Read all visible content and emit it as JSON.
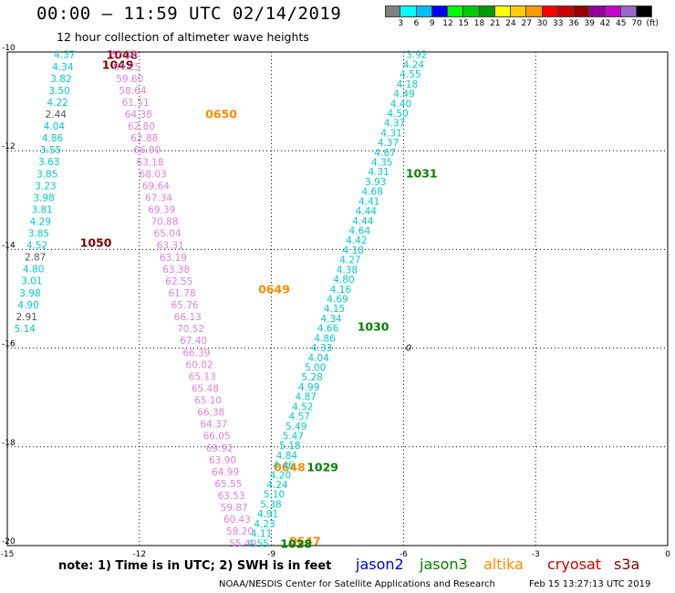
{
  "header": {
    "title": "00:00 – 11:59 UTC 02/14/2019",
    "subtitle": "12 hour collection of altimeter wave heights"
  },
  "legend": {
    "unit": "(ft)",
    "colors": [
      "#808080",
      "#00ffff",
      "#00bfff",
      "#0000ff",
      "#00ff00",
      "#00cc00",
      "#009900",
      "#ffff00",
      "#ffcc00",
      "#ff9900",
      "#ff0000",
      "#cc0000",
      "#990000",
      "#990099",
      "#cc00cc",
      "#9966cc",
      "#000000"
    ],
    "labels": [
      "3",
      "6",
      "9",
      "12",
      "15",
      "18",
      "21",
      "24",
      "27",
      "30",
      "33",
      "36",
      "39",
      "42",
      "45",
      "70"
    ]
  },
  "map": {
    "lon_range": [
      -15,
      0
    ],
    "lat_range": [
      -20,
      -10
    ],
    "x_ticks": [
      "-15",
      "-12",
      "-9",
      "-6",
      "-3",
      "0"
    ],
    "y_ticks": [
      "-10",
      "-12",
      "-14",
      "-16",
      "-18",
      "-20"
    ],
    "stray_label": "0"
  },
  "colors": {
    "jason2": "#0000cc",
    "jason3": "#008000",
    "altika": "#ff8c00",
    "cryosat": "#cc0000",
    "s3a": "#800000",
    "wave_low": "#00cccc",
    "wave_gray": "#555555",
    "wave_pink": "#e080e0"
  },
  "tracks": [
    {
      "satellite": "s3a",
      "color": "#00cccc",
      "values": [
        "4.37",
        "4.34",
        "3.82",
        "3.50",
        "4.22",
        "2.44",
        "4.04",
        "4.86",
        "3.55",
        "3.63",
        "3.85",
        "3.23",
        "3.98",
        "3.81",
        "4.29",
        "3.85",
        "4.52",
        "2.87",
        "4.80",
        "3.01",
        "3.98",
        "4.90",
        "2.91",
        "5.14"
      ],
      "gray_indices": [
        5,
        17,
        22
      ],
      "start": [
        -13.7,
        -10.05
      ],
      "end": [
        -14.6,
        -15.6
      ],
      "orbit_labels": [
        {
          "text": "1048",
          "lon": -12.75,
          "lat": -10.05,
          "color": "#800000"
        },
        {
          "text": "1049",
          "lon": -12.85,
          "lat": -10.25,
          "color": "#800000"
        },
        {
          "text": "1050",
          "lon": -13.35,
          "lat": -13.85,
          "color": "#800000"
        }
      ]
    },
    {
      "satellite": "altika",
      "color": "#e080e0",
      "values": [
        "67.18",
        "64.25",
        "59.60",
        "58.64",
        "61.51",
        "64.38",
        "62.80",
        "62.88",
        "66.90",
        "63.18",
        "68.03",
        "69.64",
        "67.34",
        "69.39",
        "70.88",
        "65.04",
        "63.31",
        "63.19",
        "63.38",
        "62.55",
        "61.78",
        "65.76",
        "66.13",
        "70.52",
        "67.40",
        "66.39",
        "60.02",
        "65.13",
        "65.48",
        "65.10",
        "66.38",
        "64.37",
        "66.05",
        "69.92",
        "63.90",
        "64.99",
        "65.55",
        "63.53",
        "59.87",
        "60.43",
        "58.20",
        "55.49"
      ],
      "start": [
        -12.35,
        -10.05
      ],
      "end": [
        -9.65,
        -19.95
      ],
      "orbit_labels": [
        {
          "text": "0650",
          "lon": -10.5,
          "lat": -11.25,
          "color": "#ff8c00"
        },
        {
          "text": "0649",
          "lon": -9.3,
          "lat": -14.8,
          "color": "#ff8c00"
        },
        {
          "text": "0648",
          "lon": -8.95,
          "lat": -18.4,
          "color": "#ff8c00"
        },
        {
          "text": "0647",
          "lon": -8.6,
          "lat": -19.9,
          "color": "#ff8c00"
        }
      ]
    },
    {
      "satellite": "jason3",
      "color": "#00cccc",
      "values": [
        "3.92",
        "4.24",
        "4.55",
        "4.18",
        "4.49",
        "4.40",
        "4.50",
        "4.37",
        "4.31",
        "4.37",
        "4.67",
        "4.35",
        "4.31",
        "3.93",
        "4.68",
        "4.41",
        "4.44",
        "4.44",
        "4.64",
        "4.42",
        "4.18",
        "4.27",
        "4.38",
        "4.80",
        "4.16",
        "4.69",
        "4.15",
        "4.34",
        "4.66",
        "4.86",
        "4.33",
        "4.04",
        "5.00",
        "5.28",
        "4.99",
        "4.87",
        "4.52",
        "4.57",
        "5.49",
        "5.47",
        "5.18",
        "4.84",
        "4.46",
        "4.20",
        "4.24",
        "5.10",
        "5.38",
        "4.91",
        "4.23",
        "4.11",
        "4.55"
      ],
      "start": [
        -5.7,
        -10.05
      ],
      "end": [
        -9.3,
        -19.95
      ],
      "orbit_labels": [
        {
          "text": "1031",
          "lon": -5.95,
          "lat": -12.45,
          "color": "#008000"
        },
        {
          "text": "1030",
          "lon": -7.05,
          "lat": -15.55,
          "color": "#008000"
        },
        {
          "text": "1029",
          "lon": -8.2,
          "lat": -18.4,
          "color": "#008000"
        },
        {
          "text": "1028",
          "lon": -8.8,
          "lat": -19.95,
          "color": "#008000"
        }
      ]
    }
  ],
  "footer": {
    "note": "note:  1) Time is in UTC;  2) SWH is in feet",
    "sat_jason2": "jason2",
    "sat_jason3": "jason3",
    "sat_altika": "altika",
    "sat_cryosat": "cryosat",
    "sat_s3a": "s3a",
    "credit": "NOAA/NESDIS Center for Satellite Applications and Research",
    "generated": "Feb 15 13:27:13 UTC 2019"
  }
}
